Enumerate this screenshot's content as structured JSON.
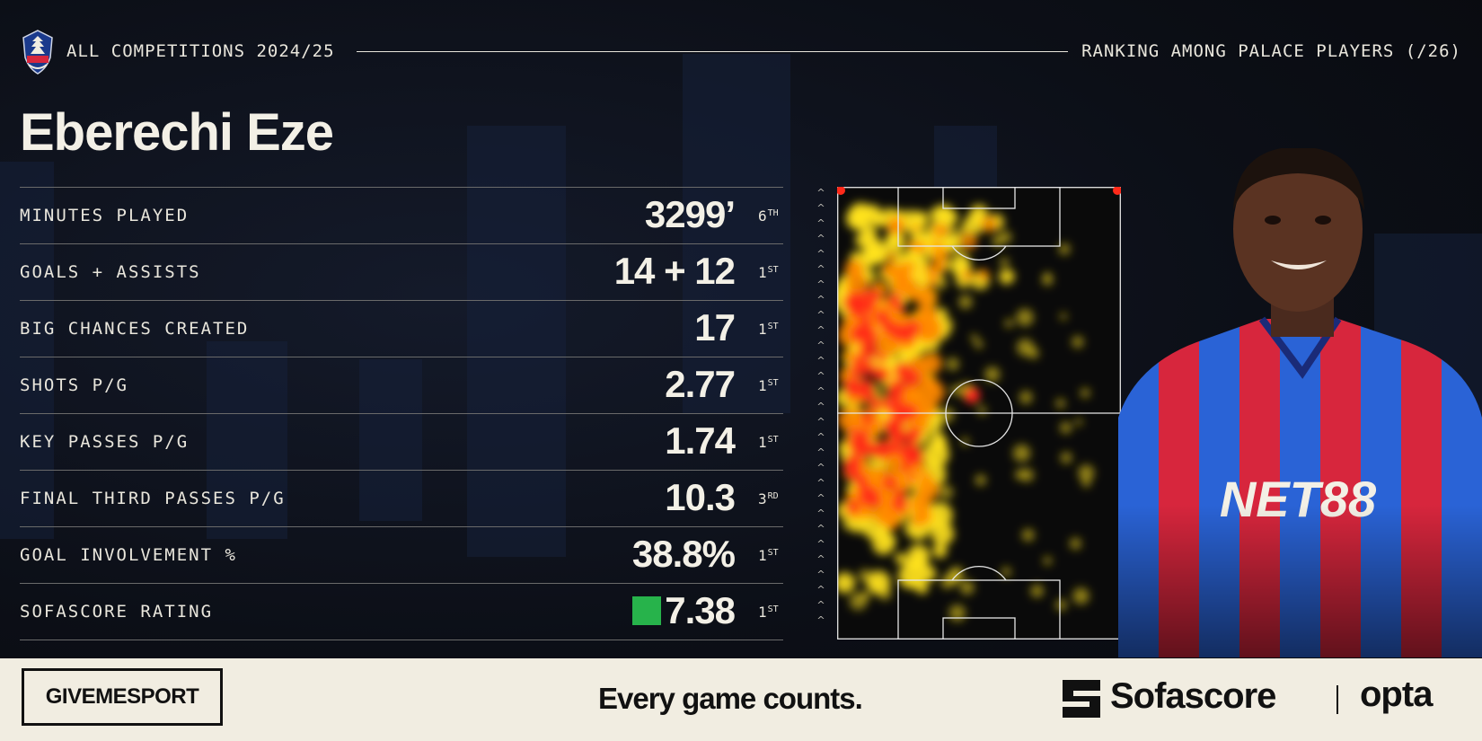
{
  "header": {
    "competition": "ALL COMPETITIONS 2024/25",
    "ranking_label": "RANKING AMONG PALACE PLAYERS (/26)"
  },
  "player": {
    "name": "Eberechi Eze"
  },
  "stats": [
    {
      "label": "MINUTES PLAYED",
      "value": "3299’",
      "rank": "6",
      "suffix": "TH"
    },
    {
      "label": "GOALS + ASSISTS",
      "value": "14 + 12",
      "rank": "1",
      "suffix": "ST"
    },
    {
      "label": "BIG CHANCES CREATED",
      "value": "17",
      "rank": "1",
      "suffix": "ST"
    },
    {
      "label": "SHOTS P/G",
      "value": "2.77",
      "rank": "1",
      "suffix": "ST"
    },
    {
      "label": "KEY PASSES P/G",
      "value": "1.74",
      "rank": "1",
      "suffix": "ST"
    },
    {
      "label": "FINAL THIRD PASSES P/G",
      "value": "10.3",
      "rank": "3",
      "suffix": "RD"
    },
    {
      "label": "GOAL INVOLVEMENT %",
      "value": "38.8%",
      "rank": "1",
      "suffix": "ST"
    },
    {
      "label": "SOFASCORE RATING",
      "value": "7.38",
      "rank": "1",
      "suffix": "ST"
    }
  ],
  "rating_color": "#27b34b",
  "heatmap": {
    "hot": "#ff2a1a",
    "warm": "#ff8a00",
    "mild": "#ffe21f"
  },
  "footer": {
    "brand": "GIVEMESPORT",
    "tagline": "Every game counts.",
    "partner1": "Sofascore",
    "partner2": "opta"
  },
  "colors": {
    "background": "#0c0f17",
    "text": "#f3f0e6",
    "footer_bg": "#f1ede1",
    "kit_blue": "#2a63d6",
    "kit_red": "#d7263d"
  }
}
